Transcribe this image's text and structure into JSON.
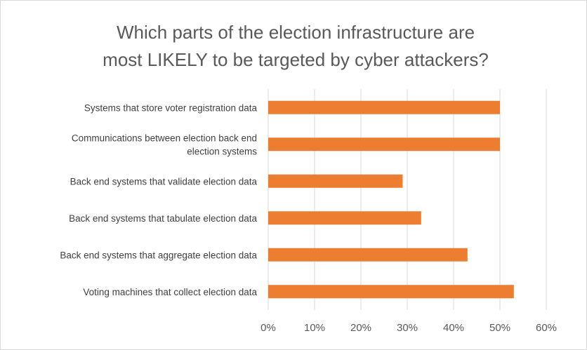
{
  "chart_data": {
    "type": "bar",
    "orientation": "horizontal",
    "title_lines": [
      "Which parts of the election infrastructure are",
      "most LIKELY to be targeted by cyber attackers?"
    ],
    "categories": [
      [
        "Systems that store voter registration data"
      ],
      [
        "Communications between election back end",
        "election systems"
      ],
      [
        "Back end systems that validate election data"
      ],
      [
        "Back end systems that tabulate election data"
      ],
      [
        "Back end systems that aggregate election data"
      ],
      [
        "Voting machines that collect election data"
      ]
    ],
    "values": [
      0.5,
      0.5,
      0.29,
      0.33,
      0.43,
      0.53
    ],
    "xlim": [
      0,
      0.6
    ],
    "ticks": [
      0,
      0.1,
      0.2,
      0.3,
      0.4,
      0.5,
      0.6
    ],
    "tick_labels": [
      "0%",
      "10%",
      "20%",
      "30%",
      "40%",
      "50%",
      "60%"
    ],
    "grid": true,
    "bar_color": "#ed7d31",
    "grid_color": "#d9d9d9"
  }
}
